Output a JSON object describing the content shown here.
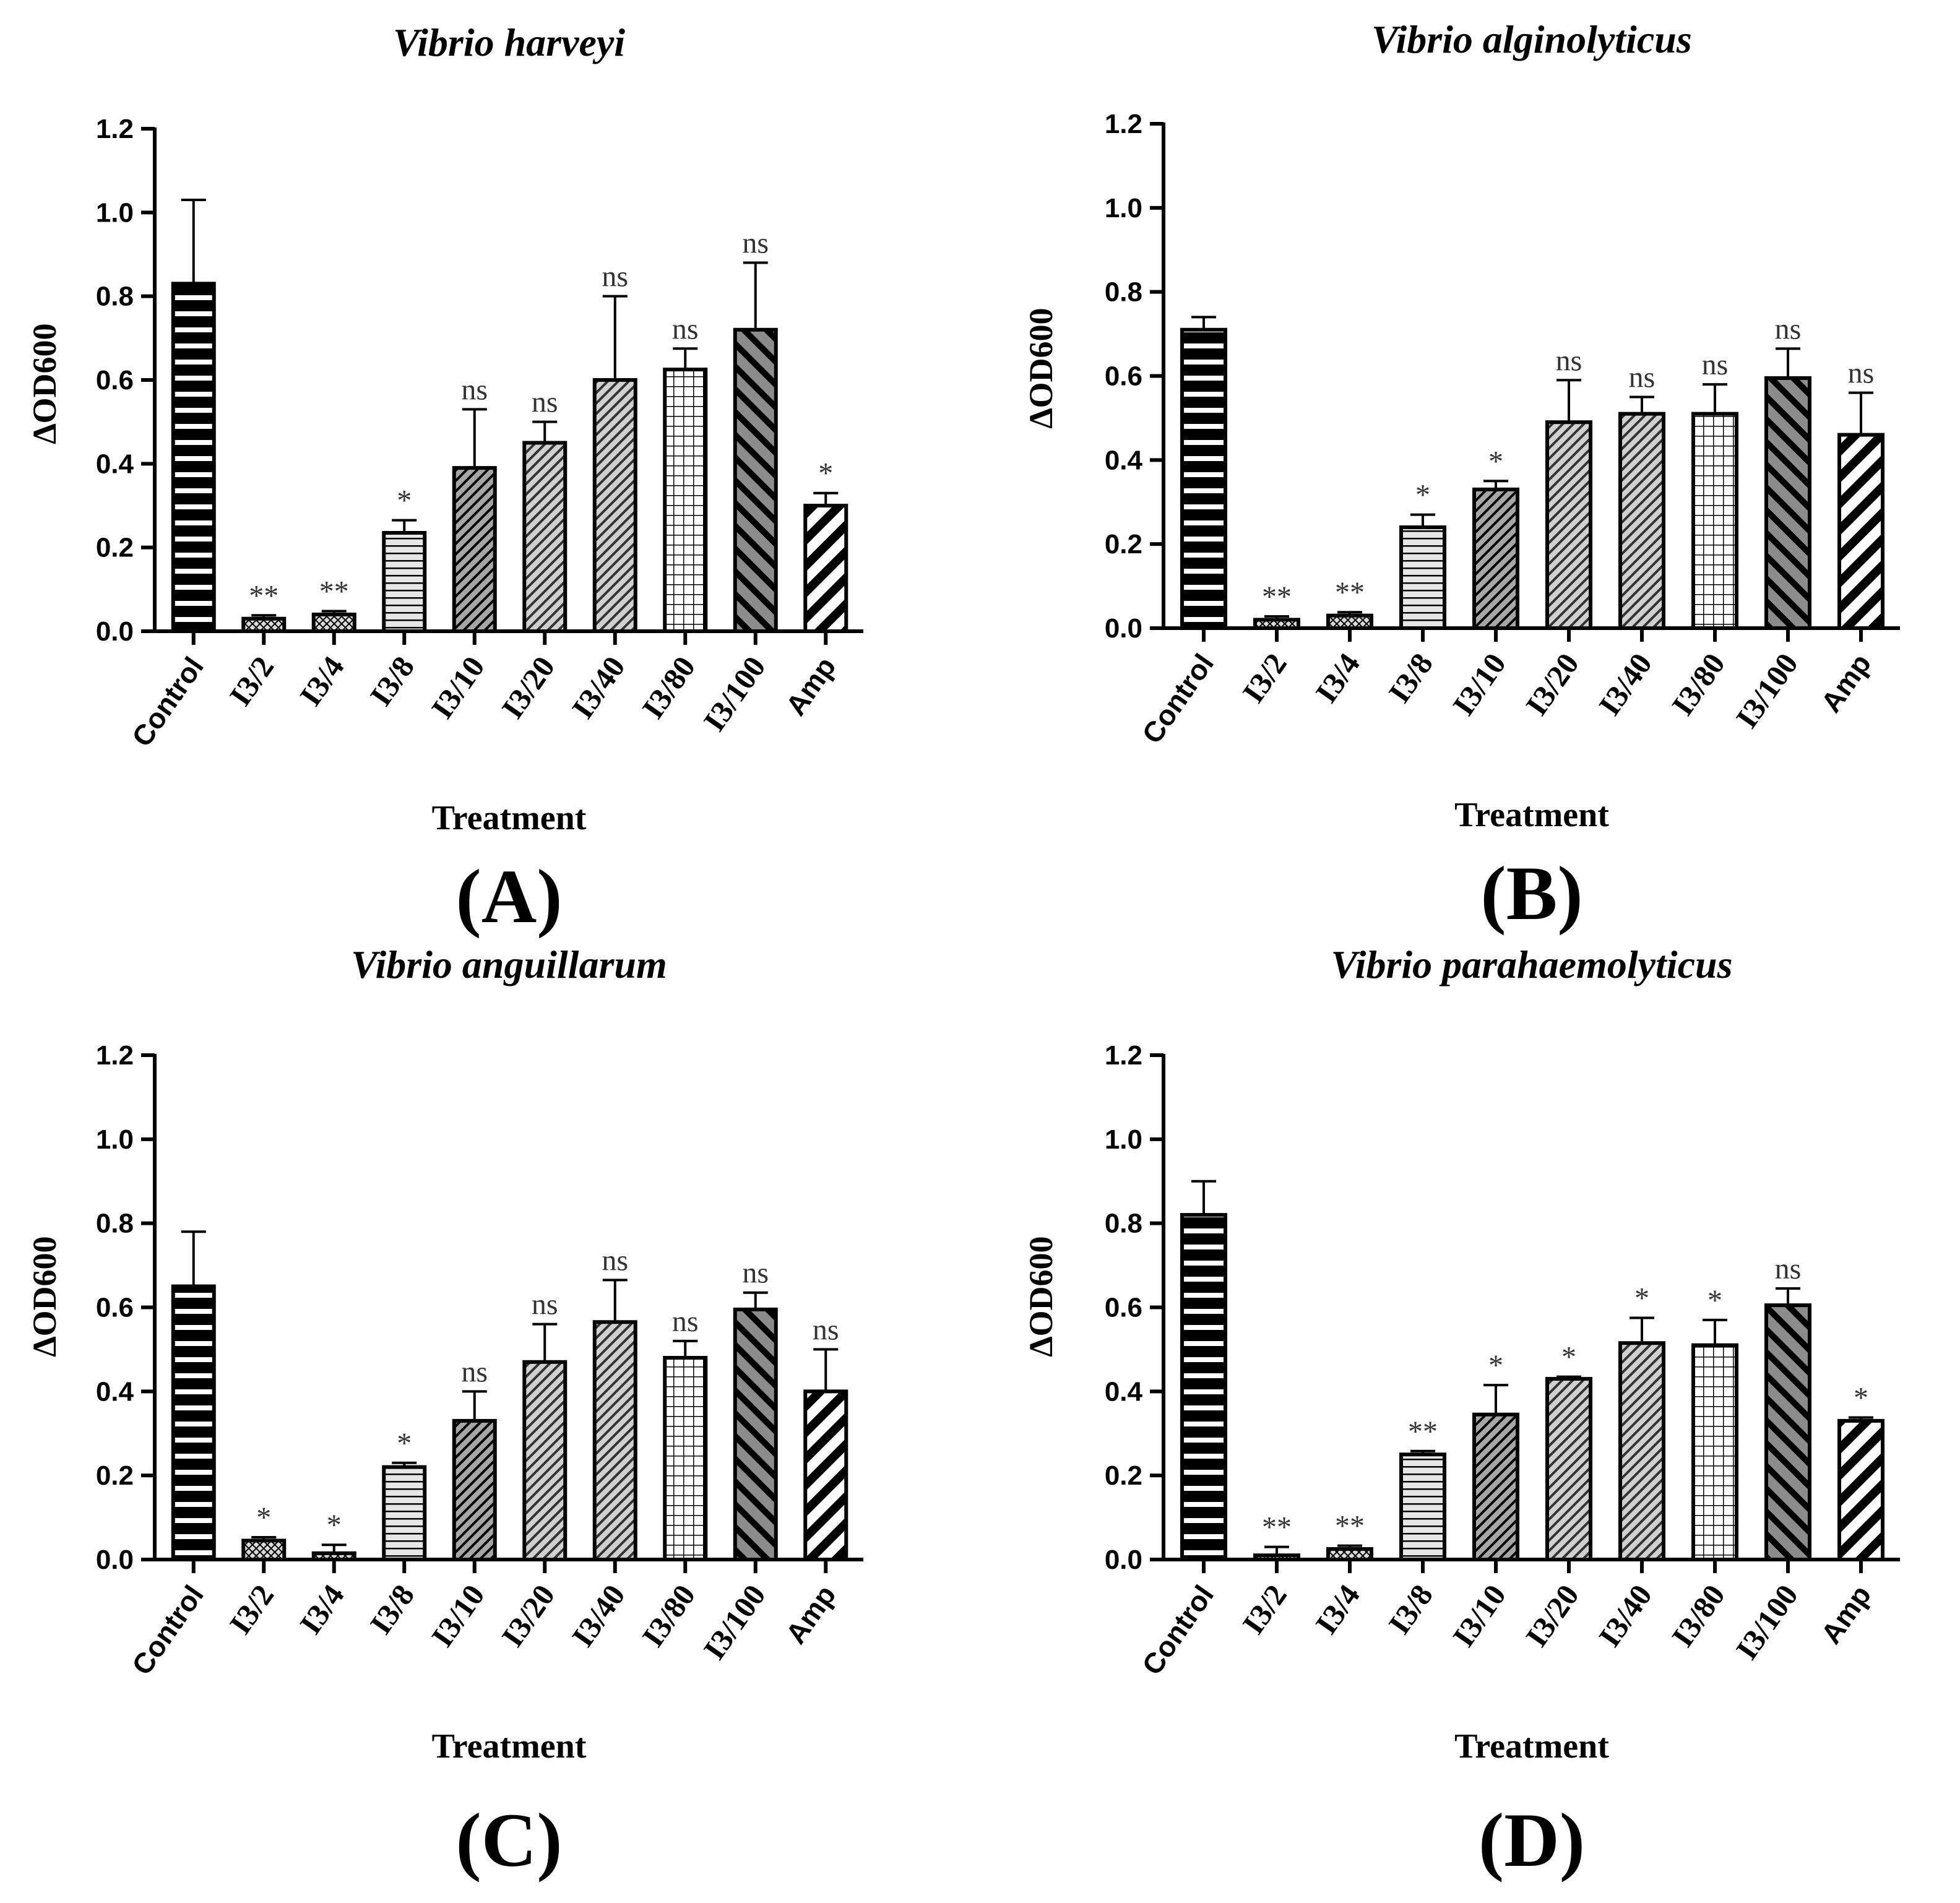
{
  "chart_data": [
    {
      "type": "bar",
      "panel_label": "(A)",
      "title": "Vibrio harveyi",
      "xlabel": "Treatment",
      "ylabel": "∆OD600",
      "ylim": [
        0,
        1.2
      ],
      "yticks": [
        "0.0",
        "0.2",
        "0.4",
        "0.6",
        "0.8",
        "1.0",
        "1.2"
      ],
      "categories": [
        "Control",
        "I3/2",
        "I3/4",
        "I3/8",
        "I3/10",
        "I3/20",
        "I3/40",
        "I3/80",
        "I3/100",
        "Amp"
      ],
      "values": [
        0.83,
        0.03,
        0.04,
        0.235,
        0.39,
        0.45,
        0.6,
        0.625,
        0.72,
        0.3
      ],
      "errors": [
        0.2,
        0.008,
        0.008,
        0.03,
        0.14,
        0.05,
        0.2,
        0.05,
        0.16,
        0.03
      ],
      "significance": [
        "",
        "**",
        "**",
        "*",
        "ns",
        "ns",
        "ns",
        "ns",
        "ns",
        "*"
      ]
    },
    {
      "type": "bar",
      "panel_label": "(B)",
      "title": "Vibrio alginolyticus",
      "xlabel": "Treatment",
      "ylabel": "∆OD600",
      "ylim": [
        0,
        1.2
      ],
      "yticks": [
        "0.0",
        "0.2",
        "0.4",
        "0.6",
        "0.8",
        "1.0",
        "1.2"
      ],
      "categories": [
        "Control",
        "I3/2",
        "I3/4",
        "I3/8",
        "I3/10",
        "I3/20",
        "I3/40",
        "I3/80",
        "I3/100",
        "Amp"
      ],
      "values": [
        0.71,
        0.02,
        0.03,
        0.24,
        0.33,
        0.49,
        0.51,
        0.51,
        0.595,
        0.46
      ],
      "errors": [
        0.03,
        0.008,
        0.008,
        0.03,
        0.02,
        0.1,
        0.04,
        0.07,
        0.07,
        0.1
      ],
      "significance": [
        "",
        "**",
        "**",
        "*",
        "*",
        "ns",
        "ns",
        "ns",
        "ns",
        "ns"
      ]
    },
    {
      "type": "bar",
      "panel_label": "(C)",
      "title": "Vibrio anguillarum",
      "xlabel": "Treatment",
      "ylabel": "∆OD600",
      "ylim": [
        0,
        1.2
      ],
      "yticks": [
        "0.0",
        "0.2",
        "0.4",
        "0.6",
        "0.8",
        "1.0",
        "1.2"
      ],
      "categories": [
        "Control",
        "I3/2",
        "I3/4",
        "I3/8",
        "I3/10",
        "I3/20",
        "I3/40",
        "I3/80",
        "I3/100",
        "Amp"
      ],
      "values": [
        0.65,
        0.045,
        0.015,
        0.22,
        0.33,
        0.47,
        0.565,
        0.48,
        0.595,
        0.4
      ],
      "errors": [
        0.13,
        0.008,
        0.02,
        0.01,
        0.07,
        0.09,
        0.1,
        0.04,
        0.04,
        0.1
      ],
      "significance": [
        "",
        "*",
        "*",
        "*",
        "ns",
        "ns",
        "ns",
        "ns",
        "ns",
        "ns"
      ]
    },
    {
      "type": "bar",
      "panel_label": "(D)",
      "title": "Vibrio parahaemolyticus",
      "xlabel": "Treatment",
      "ylabel": "∆OD600",
      "ylim": [
        0,
        1.2
      ],
      "yticks": [
        "0.0",
        "0.2",
        "0.4",
        "0.6",
        "0.8",
        "1.0",
        "1.2"
      ],
      "categories": [
        "Control",
        "I3/2",
        "I3/4",
        "I3/8",
        "I3/10",
        "I3/20",
        "I3/40",
        "I3/80",
        "I3/100",
        "Amp"
      ],
      "values": [
        0.82,
        0.01,
        0.025,
        0.25,
        0.345,
        0.43,
        0.515,
        0.51,
        0.605,
        0.33
      ],
      "errors": [
        0.08,
        0.02,
        0.008,
        0.008,
        0.07,
        0.005,
        0.06,
        0.06,
        0.04,
        0.008
      ],
      "significance": [
        "",
        "**",
        "**",
        "**",
        "*",
        "*",
        "*",
        "*",
        "ns",
        "*"
      ]
    }
  ],
  "colors": {
    "ink": "#000000",
    "light_fill": "#d9d9d9",
    "mid_fill": "#a6a6a6",
    "dark_fill": "#7f7f7f",
    "sig_text": "#333333"
  }
}
